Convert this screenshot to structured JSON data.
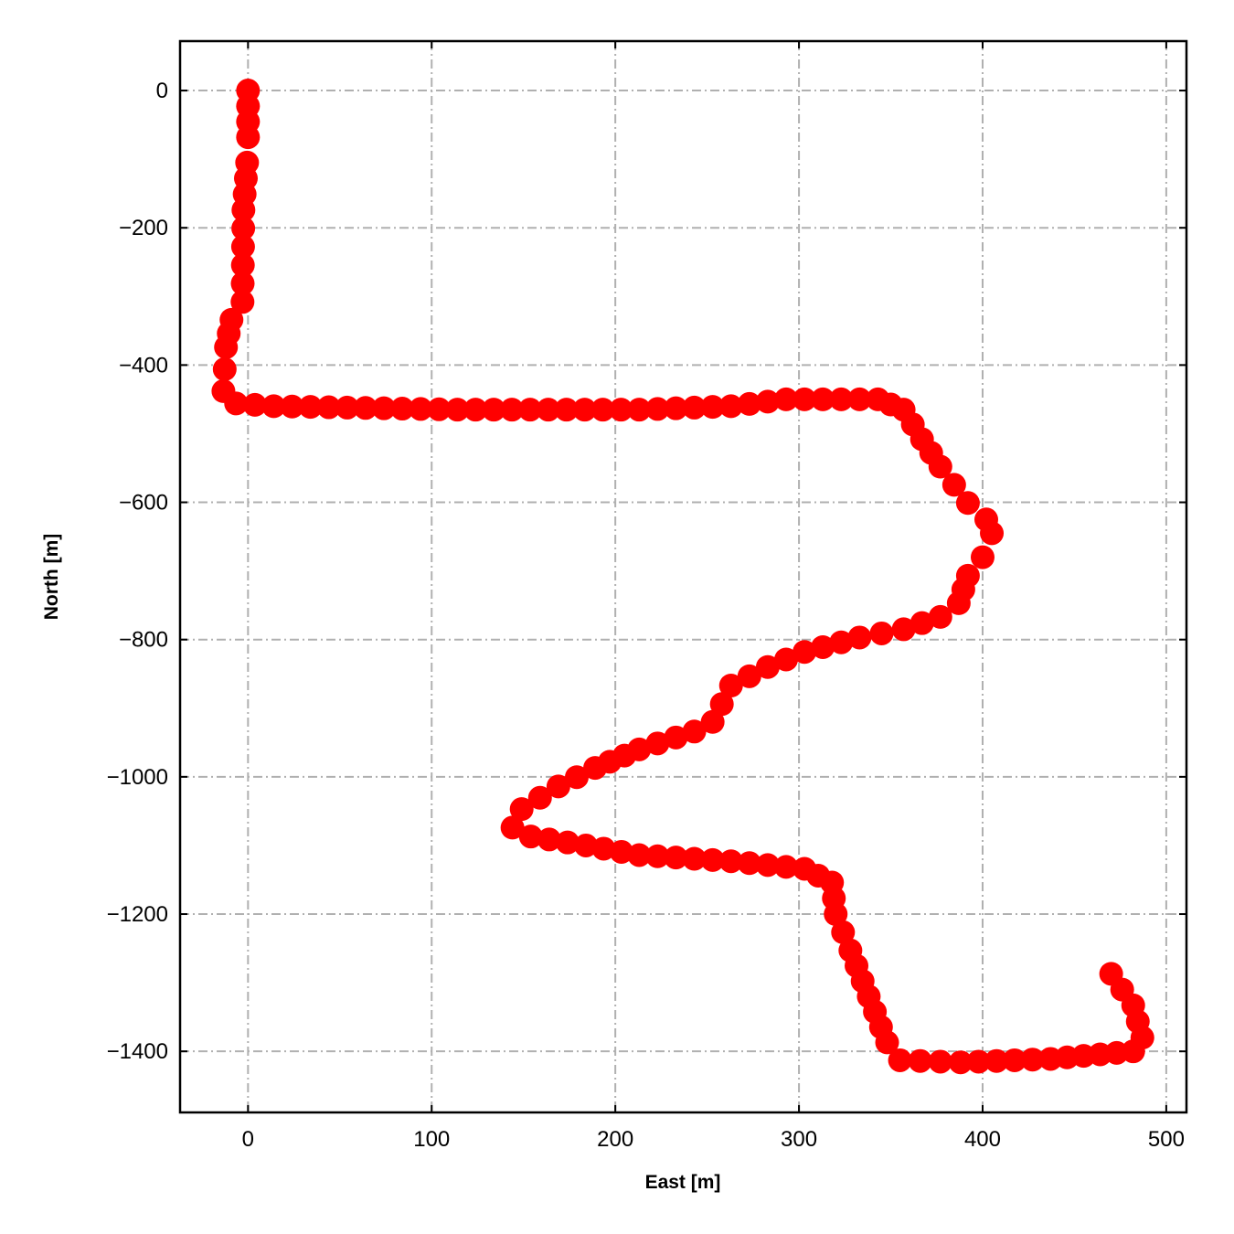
{
  "chart_data": {
    "type": "scatter",
    "title": "",
    "xlabel": "East [m]",
    "ylabel": "North [m]",
    "xlim": [
      -37,
      511
    ],
    "ylim": [
      -1489,
      72
    ],
    "xticks": [
      0,
      100,
      200,
      300,
      400,
      500
    ],
    "yticks": [
      0,
      -200,
      -400,
      -600,
      -800,
      -1000,
      -1200,
      -1400
    ],
    "xtick_labels": [
      "0",
      "100",
      "200",
      "300",
      "400",
      "500"
    ],
    "ytick_labels": [
      "0",
      "−200",
      "−400",
      "−600",
      "−800",
      "−1000",
      "−1200",
      "−1400"
    ],
    "grid": true,
    "grid_style": "dash-dot",
    "marker_color": "#ff0000",
    "grid_color": "#b0b0b0",
    "series": [
      {
        "x": [
          0,
          0,
          -0.5,
          -2.5,
          -3,
          -9,
          -12,
          -13.4,
          -6.5,
          14,
          114,
          213,
          263,
          293,
          343,
          357,
          367,
          377,
          392,
          402,
          405,
          400,
          392,
          387,
          377,
          357,
          333,
          303,
          283,
          263,
          258,
          253,
          243,
          213,
          189,
          169,
          149,
          144,
          154,
          184,
          213,
          263,
          303,
          318,
          320,
          328,
          338,
          348,
          355,
          388,
          437,
          482,
          487,
          482,
          470
        ],
        "y": [
          0,
          -68,
          -105,
          -174,
          -308,
          -334,
          -374,
          -438,
          -456,
          -460,
          -465,
          -465,
          -460,
          -450,
          -450,
          -465,
          -508,
          -548,
          -601,
          -625,
          -645,
          -680,
          -707,
          -747,
          -767,
          -785,
          -797,
          -818,
          -840,
          -867,
          -894,
          -920,
          -934,
          -960,
          -987,
          -1014,
          -1047,
          -1074,
          -1087,
          -1100,
          -1114,
          -1123,
          -1134,
          -1154,
          -1200,
          -1253,
          -1320,
          -1387,
          -1413,
          -1416,
          -1411,
          -1400,
          -1380,
          -1333,
          -1287
        ]
      }
    ]
  }
}
